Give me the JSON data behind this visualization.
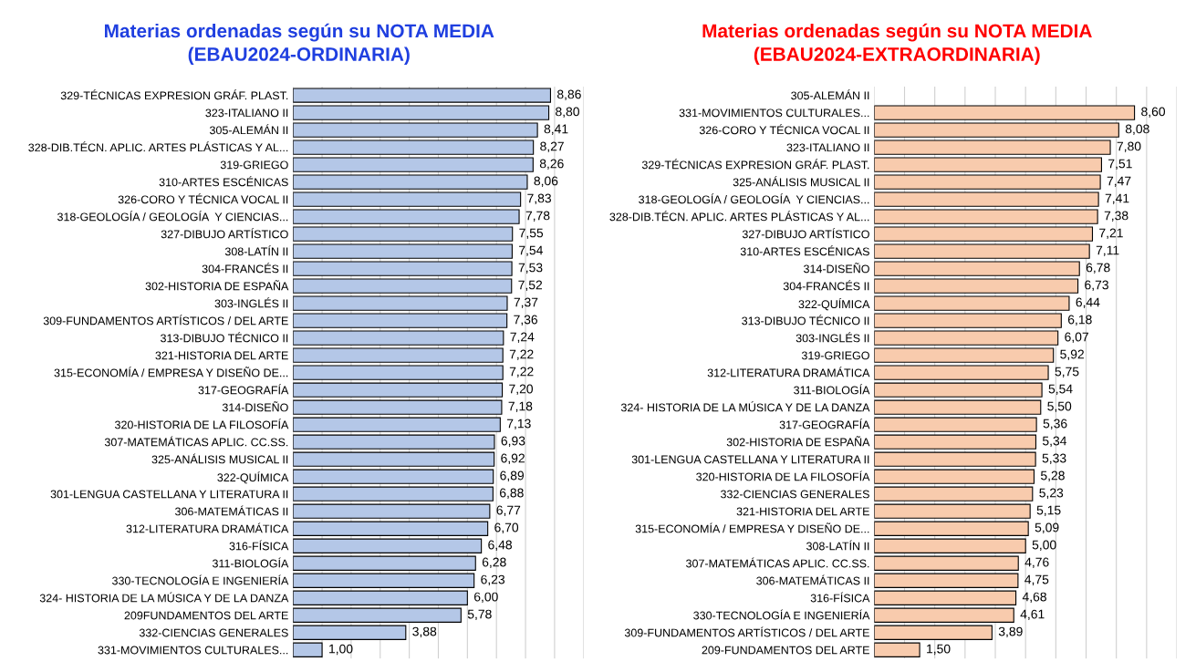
{
  "chart_data": [
    {
      "type": "bar",
      "orientation": "horizontal",
      "title": "Materias ordenadas según su NOTA MEDIA\n(EBAU2024-ORDINARIA)",
      "categories": [
        "329-TÉCNICAS EXPRESION GRÁF. PLAST.",
        "323-ITALIANO II",
        "305-ALEMÁN II",
        "328-DIB.TÉCN. APLIC. ARTES PLÁSTICAS Y AL...",
        "319-GRIEGO",
        "310-ARTES ESCÉNICAS",
        "326-CORO Y TÉCNICA VOCAL II",
        "318-GEOLOGÍA / GEOLOGÍA  Y CIENCIAS...",
        "327-DIBUJO ARTÍSTICO",
        "308-LATÍN II",
        "304-FRANCÉS II",
        "302-HISTORIA DE ESPAÑA",
        "303-INGLÉS II",
        "309-FUNDAMENTOS ARTÍSTICOS / DEL ARTE",
        "313-DIBUJO TÉCNICO II",
        "321-HISTORIA DEL ARTE",
        "315-ECONOMÍA / EMPRESA Y DISEÑO DE...",
        "317-GEOGRAFÍA",
        "314-DISEÑO",
        "320-HISTORIA DE LA FILOSOFÍA",
        "307-MATEMÁTICAS APLIC. CC.SS.",
        "325-ANÁLISIS MUSICAL II",
        "322-QUÍMICA",
        "301-LENGUA CASTELLANA Y LITERATURA II",
        "306-MATEMÁTICAS II",
        "312-LITERATURA DRAMÁTICA",
        "316-FÍSICA",
        "311-BIOLOGÍA",
        "330-TECNOLOGÍA E INGENIERÍA",
        "324- HISTORIA DE LA MÚSICA Y DE LA DANZA",
        "209FUNDAMENTOS DEL ARTE",
        "332-CIENCIAS GENERALES",
        "331-MOVIMIENTOS CULTURALES..."
      ],
      "values": [
        8.86,
        8.8,
        8.41,
        8.27,
        8.26,
        8.06,
        7.83,
        7.78,
        7.55,
        7.54,
        7.53,
        7.52,
        7.37,
        7.36,
        7.24,
        7.22,
        7.22,
        7.2,
        7.18,
        7.13,
        6.93,
        6.92,
        6.89,
        6.88,
        6.77,
        6.7,
        6.48,
        6.28,
        6.23,
        6.0,
        5.78,
        3.88,
        1.0
      ],
      "value_labels": [
        "8,86",
        "8,80",
        "8,41",
        "8,27",
        "8,26",
        "8,06",
        "7,83",
        "7,78",
        "7,55",
        "7,54",
        "7,53",
        "7,52",
        "7,37",
        "7,36",
        "7,24",
        "7,22",
        "7,22",
        "7,20",
        "7,18",
        "7,13",
        "6,93",
        "6,92",
        "6,89",
        "6,88",
        "6,77",
        "6,70",
        "6,48",
        "6,28",
        "6,23",
        "6,00",
        "5,78",
        "3,88",
        "1,00"
      ],
      "color": "#b4c7e7",
      "xlim": [
        0,
        10
      ],
      "xticks": [
        {
          "value": 0,
          "label": null
        },
        {
          "value": 1,
          "label": null
        },
        {
          "value": 2,
          "label": null
        },
        {
          "value": 3,
          "label": null
        },
        {
          "value": 4,
          "label": null
        },
        {
          "value": 5,
          "label": null
        },
        {
          "value": 6,
          "label": null
        },
        {
          "value": 7,
          "label": null
        },
        {
          "value": 8,
          "label": null
        },
        {
          "value": 9,
          "label": null
        },
        {
          "value": 10,
          "label": null
        }
      ],
      "grid": "x",
      "tick_labels": "y"
    },
    {
      "type": "bar",
      "orientation": "horizontal",
      "title": "Materias ordenadas según su NOTA MEDIA\n(EBAU2024-EXTRAORDINARIA)",
      "categories": [
        "305-ALEMÁN II",
        "331-MOVIMIENTOS CULTURALES...",
        "326-CORO Y TÉCNICA VOCAL II",
        "323-ITALIANO II",
        "329-TÉCNICAS EXPRESION GRÁF. PLAST.",
        "325-ANÁLISIS MUSICAL II",
        "318-GEOLOGÍA / GEOLOGÍA  Y CIENCIAS...",
        "328-DIB.TÉCN. APLIC. ARTES PLÁSTICAS Y AL...",
        "327-DIBUJO ARTÍSTICO",
        "310-ARTES ESCÉNICAS",
        "314-DISEÑO",
        "304-FRANCÉS II",
        "322-QUÍMICA",
        "313-DIBUJO TÉCNICO II",
        "303-INGLÉS II",
        "319-GRIEGO",
        "312-LITERATURA DRAMÁTICA",
        "311-BIOLOGÍA",
        "324- HISTORIA DE LA MÚSICA Y DE LA DANZA",
        "317-GEOGRAFÍA",
        "302-HISTORIA DE ESPAÑA",
        "301-LENGUA CASTELLANA Y LITERATURA II",
        "320-HISTORIA DE LA FILOSOFÍA",
        "332-CIENCIAS GENERALES",
        "321-HISTORIA DEL ARTE",
        "315-ECONOMÍA / EMPRESA Y DISEÑO DE...",
        "308-LATÍN II",
        "307-MATEMÁTICAS APLIC. CC.SS.",
        "306-MATEMÁTICAS II",
        "316-FÍSICA",
        "330-TECNOLOGÍA E INGENIERÍA",
        "309-FUNDAMENTOS ARTÍSTICOS / DEL ARTE",
        "209-FUNDAMENTOS DEL ARTE"
      ],
      "values": [
        null,
        8.6,
        8.08,
        7.8,
        7.51,
        7.47,
        7.41,
        7.38,
        7.21,
        7.11,
        6.78,
        6.73,
        6.44,
        6.18,
        6.07,
        5.92,
        5.75,
        5.54,
        5.5,
        5.36,
        5.34,
        5.33,
        5.28,
        5.23,
        5.15,
        5.09,
        5.0,
        4.76,
        4.75,
        4.68,
        4.61,
        3.89,
        1.5
      ],
      "value_labels": [
        null,
        "8,60",
        "8,08",
        "7,80",
        "7,51",
        "7,47",
        "7,41",
        "7,38",
        "7,21",
        "7,11",
        "6,78",
        "6,73",
        "6,44",
        "6,18",
        "6,07",
        "5,92",
        "5,75",
        "5,54",
        "5,50",
        "5,36",
        "5,34",
        "5,33",
        "5,28",
        "5,23",
        "5,15",
        "5,09",
        "5,00",
        "4,76",
        "4,75",
        "4,68",
        "4,61",
        "3,89",
        "1,50"
      ],
      "color": "#f8cbad",
      "xlim": [
        0,
        10
      ],
      "xticks": [
        {
          "value": 0,
          "label": null
        },
        {
          "value": 1,
          "label": null
        },
        {
          "value": 2,
          "label": null
        },
        {
          "value": 3,
          "label": null
        },
        {
          "value": 4,
          "label": null
        },
        {
          "value": 5,
          "label": null
        },
        {
          "value": 6,
          "label": null
        },
        {
          "value": 7,
          "label": null
        },
        {
          "value": 8,
          "label": null
        },
        {
          "value": 9,
          "label": null
        },
        {
          "value": 10,
          "label": null
        }
      ],
      "grid": "x",
      "tick_labels": "y"
    }
  ]
}
